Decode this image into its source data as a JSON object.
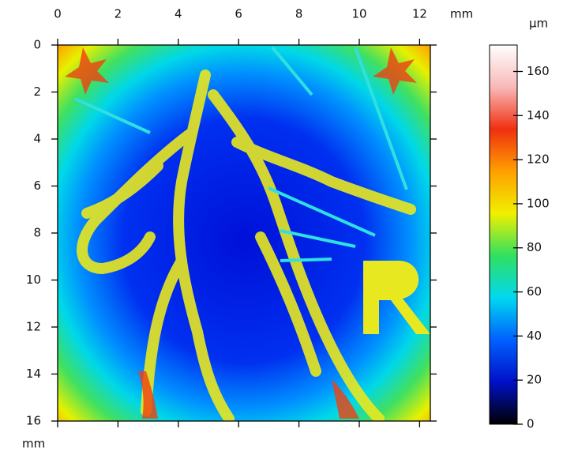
{
  "chart_data": {
    "type": "heatmap-image",
    "x_unit": "mm",
    "y_unit": "mm",
    "colorbar_unit": "µm",
    "xlim": [
      0,
      12.3
    ],
    "xticks": [
      0,
      2,
      4,
      6,
      8,
      10,
      12
    ],
    "ylim": [
      0,
      16
    ],
    "yticks": [
      0,
      2,
      4,
      6,
      8,
      10,
      12,
      14,
      16
    ],
    "zlim": [
      0,
      172
    ],
    "zticks": [
      0,
      20,
      40,
      60,
      80,
      100,
      120,
      140,
      160
    ],
    "colormap": [
      "#000000",
      "#0010c8",
      "#0060ff",
      "#00d8f0",
      "#30e060",
      "#f0f000",
      "#ffa000",
      "#f03010",
      "#f8b8b8",
      "#ffffff"
    ]
  }
}
